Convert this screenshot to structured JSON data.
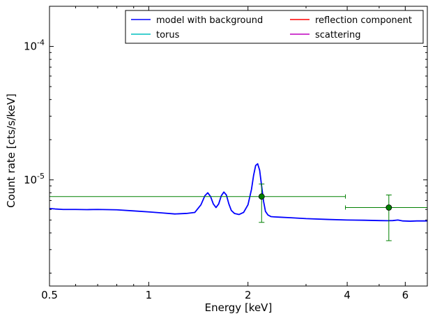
{
  "chart_data": {
    "type": "line",
    "title": "",
    "xlabel": "Energy [keV]",
    "ylabel": "Count rate [cts/s/keV]",
    "xscale": "log",
    "yscale": "log",
    "xlim": [
      0.5,
      7.0
    ],
    "ylim": [
      1.6e-06,
      0.0002
    ],
    "grid": false,
    "legend_position": "top-right",
    "x_ticks": [
      {
        "value": 0.5,
        "label": "0.5"
      },
      {
        "value": 1,
        "label": "1"
      },
      {
        "value": 2,
        "label": "2"
      },
      {
        "value": 4,
        "label": "4"
      },
      {
        "value": 6,
        "label": "6"
      }
    ],
    "y_ticks": [
      {
        "value": 1e-05,
        "base": "10",
        "exp": "-5"
      },
      {
        "value": 0.0001,
        "base": "10",
        "exp": "-4"
      }
    ],
    "legend": [
      {
        "label": "model with background",
        "color": "#0000ff"
      },
      {
        "label": "reflection component",
        "color": "#ff0000"
      },
      {
        "label": "torus",
        "color": "#00bfbf"
      },
      {
        "label": "scattering",
        "color": "#bf00bf"
      }
    ],
    "series": [
      {
        "name": "model with background",
        "color": "#0000ff",
        "x": [
          0.5,
          0.52,
          0.55,
          0.6,
          0.65,
          0.7,
          0.75,
          0.8,
          0.9,
          1.0,
          1.1,
          1.2,
          1.3,
          1.38,
          1.44,
          1.48,
          1.51,
          1.54,
          1.57,
          1.6,
          1.63,
          1.66,
          1.69,
          1.72,
          1.75,
          1.78,
          1.82,
          1.88,
          1.94,
          2.0,
          2.05,
          2.08,
          2.11,
          2.14,
          2.17,
          2.2,
          2.23,
          2.26,
          2.3,
          2.35,
          2.4,
          2.5,
          2.7,
          3.0,
          3.5,
          4.0,
          4.5,
          5.0,
          5.3,
          5.5,
          5.7,
          5.9,
          6.2,
          6.5,
          7.0
        ],
        "y": [
          6.1e-06,
          6.05e-06,
          6e-06,
          6e-06,
          5.98e-06,
          6e-06,
          5.98e-06,
          5.96e-06,
          5.85e-06,
          5.75e-06,
          5.65e-06,
          5.55e-06,
          5.6e-06,
          5.7e-06,
          6.5e-06,
          7.6e-06,
          8e-06,
          7.5e-06,
          6.6e-06,
          6.2e-06,
          6.6e-06,
          7.6e-06,
          8.1e-06,
          7.7e-06,
          6.6e-06,
          5.9e-06,
          5.6e-06,
          5.5e-06,
          5.7e-06,
          6.5e-06,
          8.5e-06,
          1.08e-05,
          1.28e-05,
          1.32e-05,
          1.18e-05,
          9e-06,
          6.9e-06,
          5.8e-06,
          5.45e-06,
          5.3e-06,
          5.28e-06,
          5.25e-06,
          5.2e-06,
          5.12e-06,
          5.05e-06,
          5e-06,
          4.98e-06,
          4.95e-06,
          4.94e-06,
          4.95e-06,
          5e-06,
          4.92e-06,
          4.9e-06,
          4.92e-06,
          4.92e-06
        ]
      }
    ],
    "data_points": {
      "color": "#008000",
      "points": [
        {
          "x": 2.2,
          "y": 7.5e-06,
          "xlo": 0.5,
          "xhi": 3.95,
          "ylo": 4.8e-06,
          "yhi": 9.3e-06
        },
        {
          "x": 5.35,
          "y": 6.2e-06,
          "xlo": 3.95,
          "xhi": 7.0,
          "ylo": 3.5e-06,
          "yhi": 7.7e-06
        }
      ]
    }
  }
}
